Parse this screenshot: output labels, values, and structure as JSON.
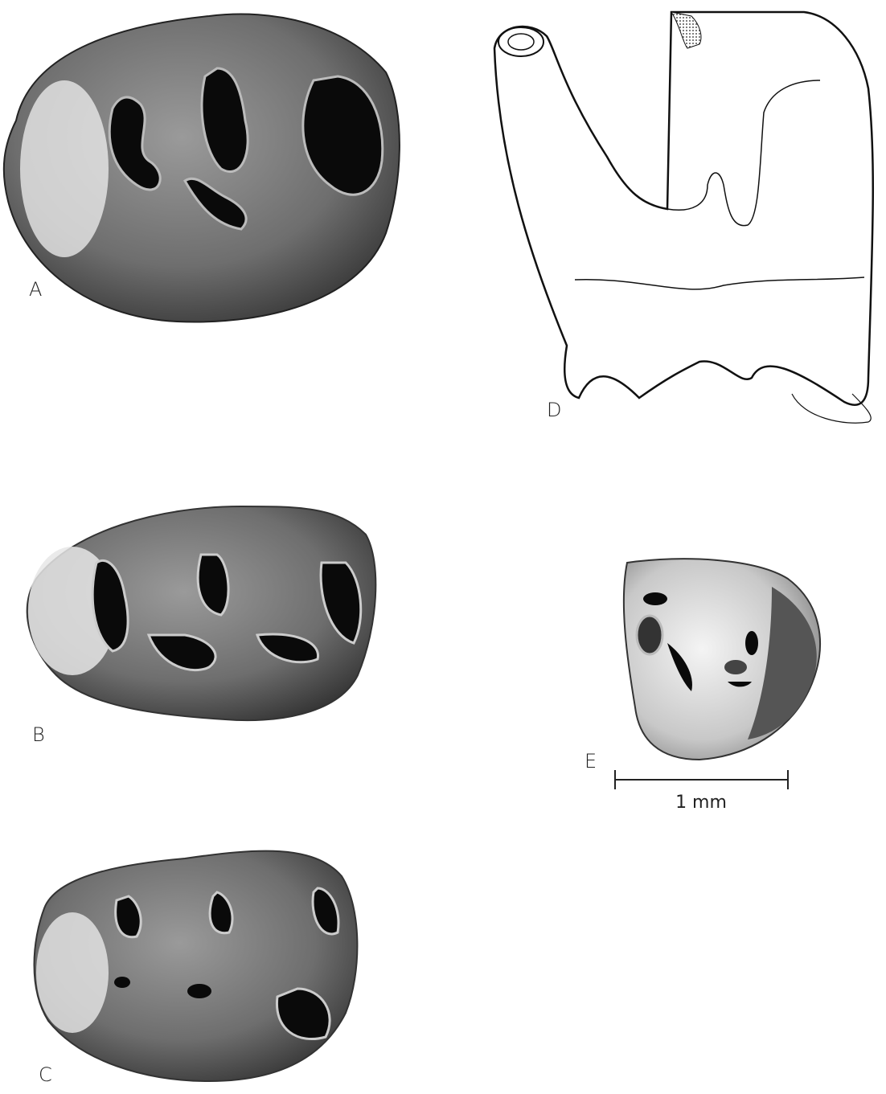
{
  "panels": [
    {
      "label": "A"
    },
    {
      "label": "B"
    },
    {
      "label": "C"
    },
    {
      "label": "D"
    },
    {
      "label": "E"
    }
  ],
  "scale_bar": {
    "label": "1 mm"
  }
}
